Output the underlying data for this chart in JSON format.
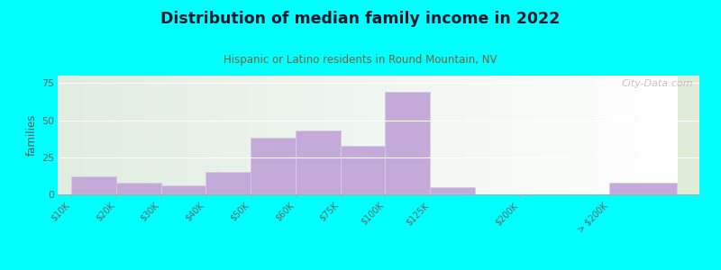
{
  "title": "Distribution of median family income in 2022",
  "subtitle": "Hispanic or Latino residents in Round Mountain, NV",
  "ylabel": "families",
  "categories": [
    "$10K",
    "$20K",
    "$30K",
    "$40K",
    "$50K",
    "$60K",
    "$75K",
    "$100K",
    "$125K",
    "$200K",
    "> $200K"
  ],
  "values": [
    12,
    8,
    6,
    15,
    38,
    43,
    33,
    69,
    5,
    0,
    8
  ],
  "bar_color": "#c4aad8",
  "bar_edge_color": "#d8c8e8",
  "bg_color": "#00ffff",
  "plot_bg_color": "#deecd8",
  "title_color": "#1a1a2e",
  "subtitle_color": "#7b5e3a",
  "ylabel_color": "#555555",
  "tick_color": "#666666",
  "yticks": [
    0,
    25,
    50,
    75
  ],
  "ylim": [
    0,
    80
  ],
  "watermark": "City-Data.com",
  "grid_color": "#ffffff",
  "spine_color": "#aaaaaa"
}
